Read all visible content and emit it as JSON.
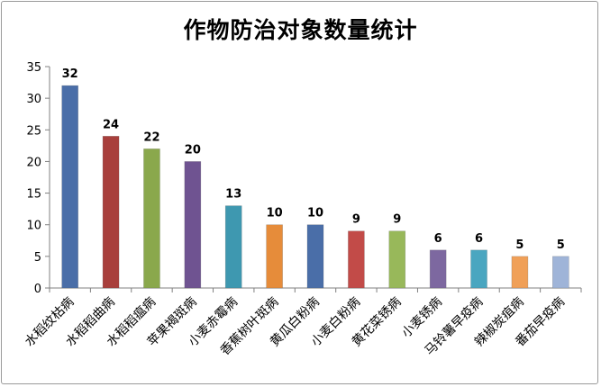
{
  "chart_data": {
    "type": "bar",
    "title": "作物防治对象数量统计",
    "xlabel": "",
    "ylabel": "",
    "ylim": [
      0,
      35
    ],
    "yticks": [
      0,
      5,
      10,
      15,
      20,
      25,
      30,
      35
    ],
    "grid": false,
    "legend": "none",
    "categories": [
      "水稻纹枯病",
      "水稻稻曲病",
      "水稻稻瘟病",
      "苹果褐斑病",
      "小麦赤霉病",
      "香蕉树叶斑病",
      "黄瓜白粉病",
      "小麦白粉病",
      "黄花菜锈病",
      "小麦锈病",
      "马铃薯早疫病",
      "辣椒炭疽病",
      "番茄早疫病"
    ],
    "values": [
      32,
      24,
      22,
      20,
      13,
      10,
      10,
      9,
      9,
      6,
      6,
      5,
      5
    ],
    "colors": [
      "#4a6ea8",
      "#a83f3c",
      "#8aa84c",
      "#6f5391",
      "#3e98b0",
      "#e68c3a",
      "#4a6ea8",
      "#c24b48",
      "#98b85a",
      "#7d68a0",
      "#4aa6c0",
      "#f0a058",
      "#9fb4d8"
    ]
  }
}
